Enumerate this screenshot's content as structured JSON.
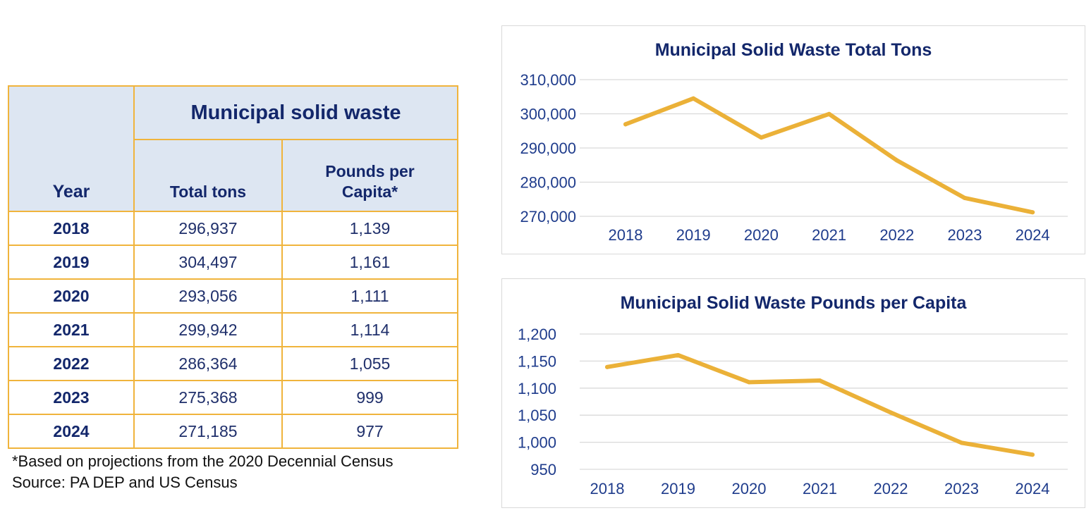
{
  "table": {
    "header_year": "Year",
    "header_group": "Municipal solid waste",
    "header_total": "Total tons",
    "header_pounds": "Pounds per Capita*",
    "rows": [
      {
        "year": "2018",
        "total": "296,937",
        "pounds": "1,139"
      },
      {
        "year": "2019",
        "total": "304,497",
        "pounds": "1,161"
      },
      {
        "year": "2020",
        "total": "293,056",
        "pounds": "1,111"
      },
      {
        "year": "2021",
        "total": "299,942",
        "pounds": "1,114"
      },
      {
        "year": "2022",
        "total": "286,364",
        "pounds": "1,055"
      },
      {
        "year": "2023",
        "total": "275,368",
        "pounds": "999"
      },
      {
        "year": "2024",
        "total": "271,185",
        "pounds": "977"
      }
    ]
  },
  "notes": {
    "footnote": "*Based on projections from the 2020 Decennial Census",
    "source": "Source: PA DEP and US Census"
  },
  "colors": {
    "line": "#ebb138",
    "title": "#13276b",
    "axis_text": "#1f3c8c",
    "grid": "#d9d9d9"
  },
  "chart_data": [
    {
      "type": "line",
      "title": "Municipal Solid Waste Total Tons",
      "categories": [
        "2018",
        "2019",
        "2020",
        "2021",
        "2022",
        "2023",
        "2024"
      ],
      "values": [
        296937,
        304497,
        293056,
        299942,
        286364,
        275368,
        271185
      ],
      "ylim": [
        270000,
        310000
      ],
      "yticks": [
        270000,
        280000,
        290000,
        300000,
        310000
      ],
      "ytick_labels": [
        "270,000",
        "280,000",
        "290,000",
        "300,000",
        "310,000"
      ],
      "xlabel": "",
      "ylabel": "",
      "grid": true
    },
    {
      "type": "line",
      "title": "Municipal Solid Waste Pounds per Capita",
      "categories": [
        "2018",
        "2019",
        "2020",
        "2021",
        "2022",
        "2023",
        "2024"
      ],
      "values": [
        1139,
        1161,
        1111,
        1114,
        1055,
        999,
        977
      ],
      "ylim": [
        950,
        1200
      ],
      "yticks": [
        950,
        1000,
        1050,
        1100,
        1150,
        1200
      ],
      "ytick_labels": [
        "950",
        "1,000",
        "1,050",
        "1,100",
        "1,150",
        "1,200"
      ],
      "xlabel": "",
      "ylabel": "",
      "grid": true
    }
  ]
}
